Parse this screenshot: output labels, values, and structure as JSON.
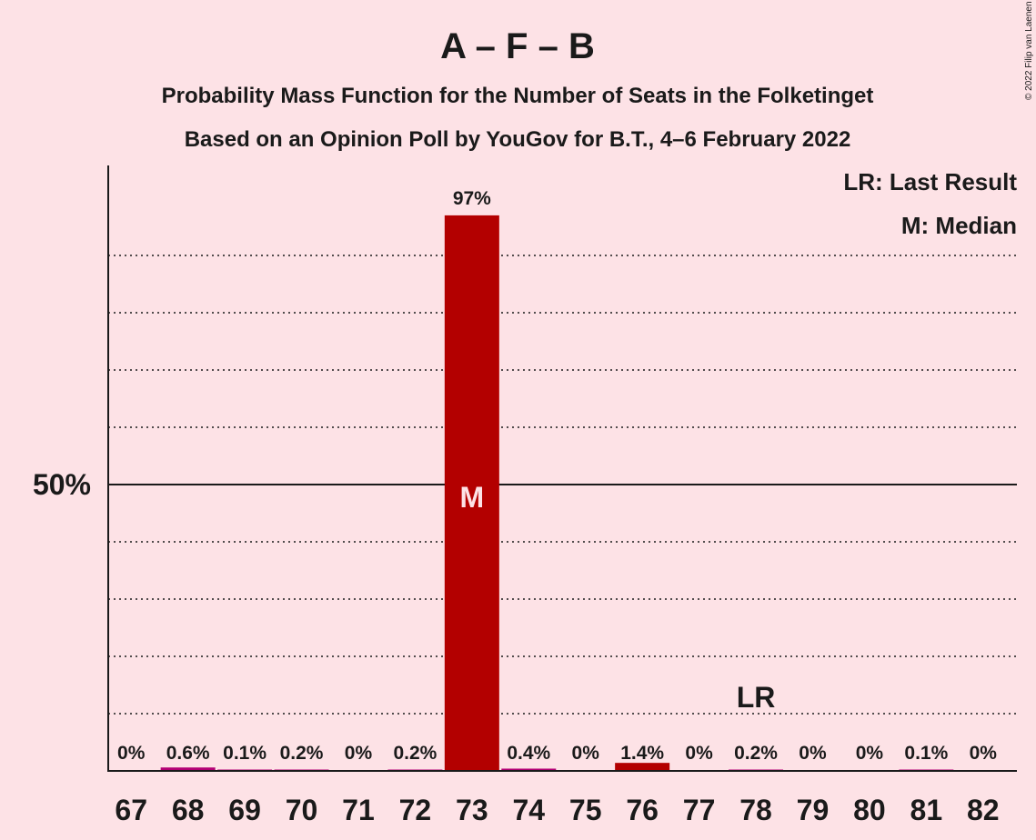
{
  "copyright": "© 2022 Filip van Laenen",
  "colors": {
    "background": "#fde2e6",
    "bar": "#b30000",
    "bar_pink": "#b30074",
    "text": "#1a1a1a"
  },
  "chart_data": {
    "type": "bar",
    "title": "A – F – B",
    "subtitle": "Probability Mass Function for the Number of Seats in the Folketinget",
    "subtitle2": "Based on an Opinion Poll by YouGov for B.T., 4–6 February 2022",
    "xlabel": "",
    "ylabel": "",
    "ylim": [
      0,
      100
    ],
    "ytick_values": [
      50
    ],
    "ytick_labels": [
      "50%"
    ],
    "gridlines": [
      10,
      20,
      30,
      40,
      60,
      70,
      80,
      90
    ],
    "categories": [
      "67",
      "68",
      "69",
      "70",
      "71",
      "72",
      "73",
      "74",
      "75",
      "76",
      "77",
      "78",
      "79",
      "80",
      "81",
      "82"
    ],
    "values": [
      0,
      0.6,
      0.1,
      0.2,
      0,
      0.2,
      97,
      0.4,
      0,
      1.4,
      0,
      0.2,
      0,
      0,
      0.1,
      0
    ],
    "labels": [
      "0%",
      "0.6%",
      "0.1%",
      "0.2%",
      "0%",
      "0.2%",
      "97%",
      "0.4%",
      "0%",
      "1.4%",
      "0%",
      "0.2%",
      "0%",
      "0%",
      "0.1%",
      "0%"
    ],
    "median_category": "73",
    "median_marker": "M",
    "last_result_category": "78",
    "last_result_marker": "LR",
    "legend": {
      "position": "top-right",
      "entries": [
        "LR: Last Result",
        "M: Median"
      ]
    }
  }
}
